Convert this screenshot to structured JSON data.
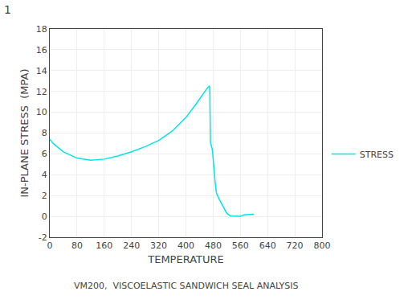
{
  "chart_data": {
    "type": "line",
    "title": "1",
    "subtitle": "VM200,  VISCOELASTIC SANDWICH SEAL ANALYSIS",
    "x_label": "TEMPERATURE",
    "y_label": "IN-PLANE STRESS  (MPA)",
    "x": [
      0,
      10,
      40,
      80,
      120,
      160,
      200,
      240,
      280,
      320,
      360,
      400,
      430,
      450,
      460,
      465,
      468,
      470,
      471,
      472,
      473,
      474,
      475,
      476,
      477,
      478,
      479,
      480,
      481,
      482,
      484,
      486,
      490,
      500,
      510,
      520,
      530,
      540,
      550,
      560,
      570,
      580,
      590,
      600
    ],
    "series": [
      {
        "name": "STRESS",
        "color": "#00e5e5",
        "values": [
          7.4,
          7.0,
          6.2,
          5.6,
          5.4,
          5.5,
          5.8,
          6.2,
          6.7,
          7.3,
          8.2,
          9.5,
          10.8,
          11.8,
          12.2,
          12.4,
          12.5,
          12.4,
          7.2,
          7.1,
          7.0,
          6.9,
          6.8,
          6.7,
          6.5,
          6.3,
          6.0,
          5.6,
          5.2,
          4.8,
          4.0,
          3.2,
          2.2,
          1.5,
          0.9,
          0.3,
          0.05,
          0.02,
          0.01,
          0.01,
          0.15,
          0.2,
          0.2,
          0.2
        ]
      }
    ],
    "xlim": [
      0,
      800
    ],
    "ylim": [
      -2,
      18
    ],
    "xticks": [
      0,
      80,
      160,
      240,
      320,
      400,
      480,
      560,
      640,
      720,
      800
    ],
    "yticks": [
      -2,
      0,
      2,
      4,
      6,
      8,
      10,
      12,
      14,
      16,
      18
    ],
    "grid": true
  }
}
